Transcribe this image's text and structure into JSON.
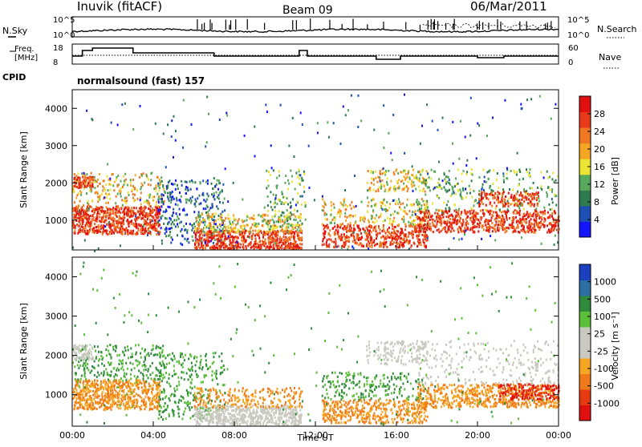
{
  "header": {
    "station": "Inuvik (fitACF)",
    "beam": "Beam 09",
    "date": "06/Mar/2011"
  },
  "nsky_panel": {
    "left_label": "N.Sky",
    "right_label": "N.Search",
    "left_ticks": [
      "10^5",
      "10^0"
    ],
    "right_ticks": [
      "10^5",
      "10^0"
    ]
  },
  "freq_panel": {
    "left_label_line1": "Freq.",
    "left_label_line2": "[MHz]",
    "right_label": "Nave",
    "left_ticks": [
      "18",
      "8"
    ],
    "right_ticks": [
      "60",
      "0"
    ],
    "cpid_label": "CPID",
    "cpid_value": "normalsound (fast) 157"
  },
  "chart_data": [
    {
      "type": "heatmap",
      "title": "",
      "ylabel": "Slant Range [km]",
      "xlabel": "",
      "ylim": [
        200,
        4500
      ],
      "y_ticks": [
        "1000",
        "2000",
        "3000",
        "4000"
      ],
      "colorbar_label": "Power [dB]",
      "colorbar_ticks": [
        "4",
        "8",
        "12",
        "16",
        "20",
        "24",
        "28"
      ],
      "colorbar_colors": [
        "#1414ff",
        "#1e4fb4",
        "#2f7b50",
        "#58a95b",
        "#ece432",
        "#f5a623",
        "#f07820",
        "#e83a1a",
        "#e01010"
      ],
      "features": [
        {
          "t_start": 0.0,
          "t_end": 4.3,
          "r_min": 600,
          "r_max": 1400,
          "level": "high"
        },
        {
          "t_start": 6.2,
          "t_end": 11.2,
          "r_min": 250,
          "r_max": 700,
          "level": "high"
        },
        {
          "t_start": 12.5,
          "t_end": 24.0,
          "r_min": 300,
          "r_max": 900,
          "level": "high"
        },
        {
          "t_start": 17.5,
          "t_end": 24.0,
          "r_min": 700,
          "r_max": 1300,
          "level": "high"
        }
      ]
    },
    {
      "type": "heatmap",
      "title": "",
      "ylabel": "Slant Range [km]",
      "xlabel": "Time UT",
      "ylim": [
        200,
        4500
      ],
      "y_ticks": [
        "1000",
        "2000",
        "3000",
        "4000"
      ],
      "x_ticks": [
        "00:00",
        "04:00",
        "08:00",
        "12:00",
        "16:00",
        "20:00",
        "00:00"
      ],
      "colorbar_label": "Velocity [m s⁻¹]",
      "colorbar_ticks": [
        "1000",
        "500",
        "100",
        "25",
        "-25",
        "-100",
        "-500",
        "-1000"
      ],
      "colorbar_colors": [
        "#1a3fbf",
        "#2d6fa3",
        "#2f8a3c",
        "#5cbf3a",
        "#c9c9c0",
        "#c9c9c0",
        "#f5a623",
        "#f07a1a",
        "#e63a10",
        "#e01010"
      ]
    }
  ]
}
